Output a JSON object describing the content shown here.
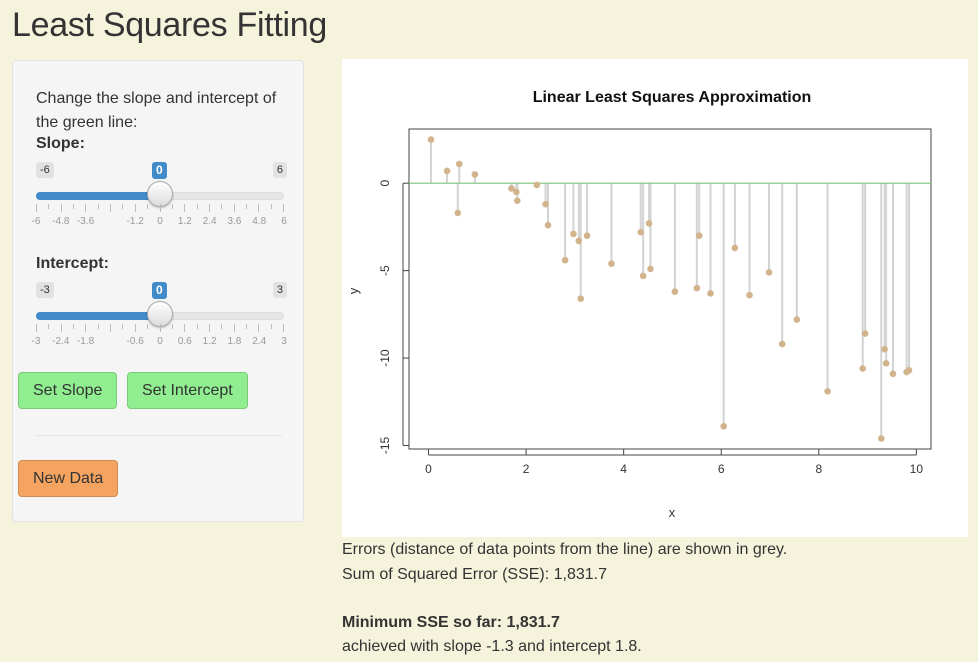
{
  "page": {
    "title": "Least Squares Fitting"
  },
  "sidebar": {
    "intro": "Change the slope and intercept of the green line:",
    "slope": {
      "label": "Slope:",
      "min_label": "-6",
      "max_label": "6",
      "value_label": "0",
      "value": 0,
      "min": -6,
      "max": 6,
      "tick_labels": [
        "-6",
        "-4.8",
        "-3.6",
        "-1.2",
        "0",
        "1.2",
        "2.4",
        "3.6",
        "4.8",
        "6"
      ]
    },
    "intercept": {
      "label": "Intercept:",
      "min_label": "-3",
      "max_label": "3",
      "value_label": "0",
      "value": 0,
      "min": -3,
      "max": 3,
      "tick_labels": [
        "-3",
        "-2.4",
        "-1.8",
        "-0.6",
        "0",
        "0.6",
        "1.2",
        "1.8",
        "2.4",
        "3"
      ]
    },
    "set_slope_label": "Set Slope",
    "set_intercept_label": "Set Intercept",
    "new_data_label": "New Data"
  },
  "chart_data": {
    "type": "scatter",
    "title": "Linear Least Squares Approximation",
    "xlabel": "x",
    "ylabel": "y",
    "xlim": [
      -0.4,
      10.3
    ],
    "ylim": [
      -15.2,
      3.1
    ],
    "x_ticks": [
      "0",
      "2",
      "4",
      "6",
      "8",
      "10"
    ],
    "y_ticks": [
      "0",
      "-5",
      "-10",
      "-15"
    ],
    "line": {
      "slope": 0,
      "intercept": 0,
      "color": "#7cc47c"
    },
    "point_color": "#d2b48c",
    "residual_color": "#d3d3d3",
    "points": [
      {
        "x": 0.05,
        "y": 2.5
      },
      {
        "x": 0.38,
        "y": 0.7
      },
      {
        "x": 0.6,
        "y": -1.7
      },
      {
        "x": 0.63,
        "y": 1.1
      },
      {
        "x": 0.95,
        "y": 0.5
      },
      {
        "x": 1.7,
        "y": -0.3
      },
      {
        "x": 1.8,
        "y": -0.5
      },
      {
        "x": 1.82,
        "y": -1.0
      },
      {
        "x": 2.22,
        "y": -0.1
      },
      {
        "x": 2.4,
        "y": -1.2
      },
      {
        "x": 2.45,
        "y": -2.4
      },
      {
        "x": 2.8,
        "y": -4.4
      },
      {
        "x": 2.97,
        "y": -2.9
      },
      {
        "x": 3.08,
        "y": -3.3
      },
      {
        "x": 3.12,
        "y": -6.6
      },
      {
        "x": 3.25,
        "y": -3.0
      },
      {
        "x": 3.75,
        "y": -4.6
      },
      {
        "x": 4.35,
        "y": -2.8
      },
      {
        "x": 4.4,
        "y": -5.3
      },
      {
        "x": 4.52,
        "y": -2.3
      },
      {
        "x": 4.55,
        "y": -4.9
      },
      {
        "x": 5.05,
        "y": -6.2
      },
      {
        "x": 5.5,
        "y": -6.0
      },
      {
        "x": 5.55,
        "y": -3.0
      },
      {
        "x": 5.78,
        "y": -6.3
      },
      {
        "x": 6.05,
        "y": -13.9
      },
      {
        "x": 6.28,
        "y": -3.7
      },
      {
        "x": 6.58,
        "y": -6.4
      },
      {
        "x": 6.98,
        "y": -5.1
      },
      {
        "x": 7.25,
        "y": -9.2
      },
      {
        "x": 7.55,
        "y": -7.8
      },
      {
        "x": 8.18,
        "y": -11.9
      },
      {
        "x": 8.9,
        "y": -10.6
      },
      {
        "x": 8.95,
        "y": -8.6
      },
      {
        "x": 9.28,
        "y": -14.6
      },
      {
        "x": 9.35,
        "y": -9.5
      },
      {
        "x": 9.38,
        "y": -10.3
      },
      {
        "x": 9.52,
        "y": -10.9
      },
      {
        "x": 9.8,
        "y": -10.8
      },
      {
        "x": 9.85,
        "y": -10.7
      }
    ]
  },
  "results": {
    "errors_text": "Errors (distance of data points from the line) are shown in grey.",
    "sse_text": "Sum of Squared Error (SSE): 1,831.7",
    "min_sse_text": "Minimum SSE so far: 1,831.7",
    "achieved_text": "achieved with slope -1.3 and intercept 1.8."
  }
}
